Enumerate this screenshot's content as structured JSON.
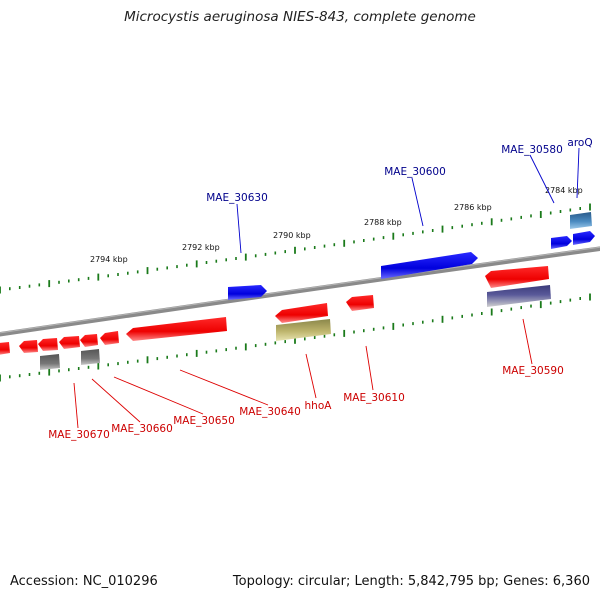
{
  "title": "Microcystis aeruginosa NIES-843, complete genome",
  "footer": {
    "accession": "Accession: NC_010296",
    "summary": "Topology: circular; Length: 5,842,795 bp; Genes: 6,360"
  },
  "colors": {
    "backbone": "#808080",
    "tick": "#1a7a1a",
    "forward_gene": "#0000ee",
    "reverse_gene": "#ee0000",
    "forward_label": "#00008b",
    "reverse_label": "#cc0000"
  },
  "ruler_labels": [
    "2794 kbp",
    "2792 kbp",
    "2790 kbp",
    "2788 kbp",
    "2786 kbp",
    "2784 kbp"
  ],
  "forward_genes": [
    "MAE_30630",
    "MAE_30600",
    "MAE_30580",
    "aroQ"
  ],
  "reverse_genes": [
    "MAE_30670",
    "MAE_30660",
    "MAE_30650",
    "MAE_30640",
    "hhoA",
    "MAE_30610",
    "MAE_30590"
  ]
}
